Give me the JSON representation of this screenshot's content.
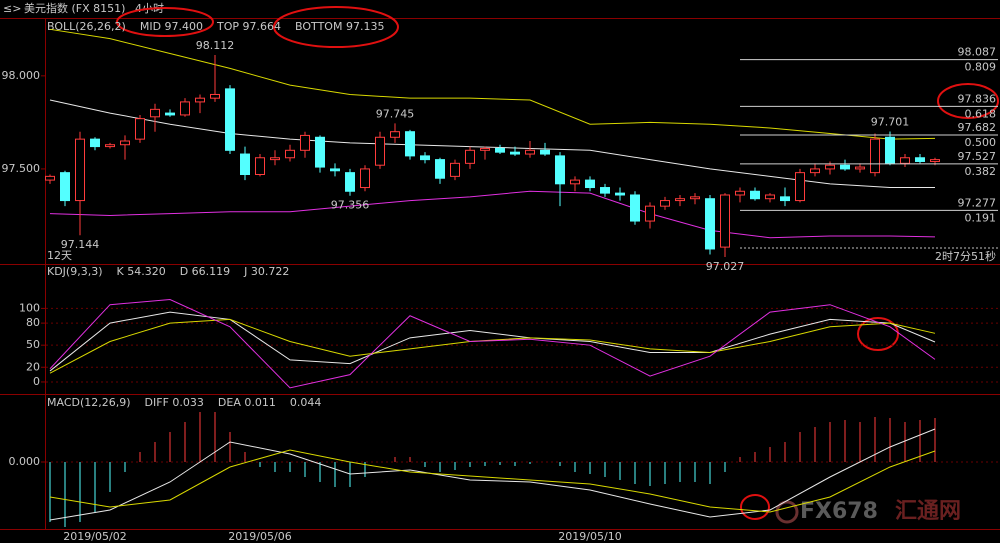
{
  "chart_data": [
    {
      "type": "candlestick",
      "title": "美元指数 (FX 8151)",
      "period": "4小时",
      "indicator": "BOLL(26,26,2)",
      "up_color": "#ff3c3c",
      "down_color": "#54ffff",
      "categories": [
        null,
        null,
        null,
        "2019/05/02",
        null,
        null,
        null,
        null,
        null,
        null,
        null,
        null,
        null,
        null,
        "2019/05/06",
        null,
        null,
        null,
        null,
        null,
        null,
        null,
        null,
        null,
        null,
        null,
        null,
        null,
        null,
        null,
        null,
        null,
        null,
        null,
        null,
        null,
        "2019/05/10",
        null,
        null,
        null,
        null,
        null,
        null,
        null,
        null,
        null,
        null,
        null,
        null,
        null,
        null,
        null,
        null,
        null,
        null,
        null,
        null,
        null,
        null,
        null
      ],
      "open": [
        97.44,
        97.48,
        97.33,
        97.66,
        97.62,
        97.63,
        97.66,
        97.78,
        97.8,
        97.79,
        97.86,
        97.88,
        97.93,
        97.58,
        97.47,
        97.55,
        97.56,
        97.6,
        97.67,
        97.5,
        97.48,
        97.4,
        97.52,
        97.67,
        97.7,
        97.57,
        97.55,
        97.46,
        97.53,
        97.6,
        97.61,
        97.59,
        97.58,
        97.6,
        97.57,
        97.42,
        97.44,
        97.4,
        97.37,
        97.36,
        97.22,
        97.3,
        97.33,
        97.34,
        97.34,
        97.08,
        97.36,
        97.38,
        97.34,
        97.35,
        97.33,
        97.48,
        97.5,
        97.52,
        97.5,
        97.48,
        97.67,
        97.53,
        97.56,
        97.54
      ],
      "high": [
        97.47,
        97.49,
        97.7,
        97.67,
        97.64,
        97.68,
        97.79,
        97.85,
        97.82,
        97.88,
        97.9,
        98.112,
        97.95,
        97.62,
        97.58,
        97.6,
        97.63,
        97.7,
        97.68,
        97.53,
        97.5,
        97.52,
        97.7,
        97.745,
        97.71,
        97.59,
        97.56,
        97.55,
        97.62,
        97.62,
        97.63,
        97.62,
        97.65,
        97.64,
        97.59,
        97.46,
        97.46,
        97.42,
        97.4,
        97.38,
        97.32,
        97.35,
        97.36,
        97.37,
        97.36,
        97.37,
        97.4,
        97.4,
        97.37,
        97.4,
        97.5,
        97.53,
        97.54,
        97.55,
        97.53,
        97.69,
        97.701,
        97.58,
        97.58,
        97.56
      ],
      "low": [
        97.42,
        97.3,
        97.144,
        97.6,
        97.61,
        97.55,
        97.64,
        97.7,
        97.78,
        97.78,
        97.8,
        97.86,
        97.58,
        97.44,
        97.46,
        97.52,
        97.54,
        97.56,
        97.48,
        97.46,
        97.356,
        97.38,
        97.5,
        97.64,
        97.55,
        97.53,
        97.42,
        97.44,
        97.5,
        97.55,
        97.58,
        97.57,
        97.56,
        97.57,
        97.3,
        97.38,
        97.38,
        97.35,
        97.33,
        97.2,
        97.18,
        97.28,
        97.3,
        97.31,
        97.04,
        97.027,
        97.32,
        97.33,
        97.32,
        97.3,
        97.32,
        97.46,
        97.47,
        97.49,
        97.48,
        97.46,
        97.52,
        97.51,
        97.53,
        97.52
      ],
      "close": [
        97.46,
        97.33,
        97.66,
        97.62,
        97.63,
        97.65,
        97.77,
        97.82,
        97.79,
        97.86,
        97.88,
        97.9,
        97.6,
        97.47,
        97.56,
        97.56,
        97.6,
        97.68,
        97.51,
        97.49,
        97.38,
        97.5,
        97.67,
        97.7,
        97.57,
        97.55,
        97.45,
        97.53,
        97.6,
        97.61,
        97.59,
        97.58,
        97.6,
        97.58,
        97.42,
        97.44,
        97.4,
        97.37,
        97.36,
        97.22,
        97.3,
        97.33,
        97.34,
        97.35,
        97.07,
        97.36,
        97.38,
        97.34,
        97.36,
        97.33,
        97.48,
        97.5,
        97.52,
        97.5,
        97.51,
        97.66,
        97.53,
        97.56,
        97.54,
        97.55
      ],
      "lines": {
        "x": [
          0,
          4,
          8,
          12,
          16,
          20,
          24,
          28,
          32,
          36,
          40,
          44,
          48,
          52,
          56,
          59
        ],
        "series": [
          {
            "label": "MID 97.400",
            "color": "#e8e8e8",
            "values": [
              97.87,
              97.8,
              97.74,
              97.69,
              97.66,
              97.64,
              97.63,
              97.62,
              97.61,
              97.6,
              97.55,
              97.5,
              97.46,
              97.42,
              97.4,
              97.4
            ]
          },
          {
            "label": "TOP 97.664",
            "color": "#d8d800",
            "values": [
              98.25,
              98.2,
              98.12,
              98.04,
              97.95,
              97.9,
              97.88,
              97.88,
              97.87,
              97.74,
              97.75,
              97.74,
              97.72,
              97.69,
              97.66,
              97.664
            ]
          },
          {
            "label": "BOTTOM 97.135",
            "color": "#e030e0",
            "values": [
              97.26,
              97.25,
              97.26,
              97.27,
              97.27,
              97.3,
              97.33,
              97.35,
              97.38,
              97.37,
              97.26,
              97.17,
              97.13,
              97.14,
              97.14,
              97.135
            ]
          }
        ]
      },
      "high_labels": [
        98.112,
        97.745,
        97.701
      ],
      "low_labels": [
        97.356,
        97.144,
        97.027
      ],
      "fib_levels": [
        {
          "price": 98.087,
          "ratio": 0.809
        },
        {
          "price": 97.836,
          "ratio": 0.618
        },
        {
          "price": 97.682,
          "ratio": {
            "value": 0.5,
            "label": "0.500"
          }
        },
        {
          "price": 97.527,
          "ratio": 0.382
        },
        {
          "price": 97.277,
          "ratio": 0.191
        }
      ],
      "range_label": "12天",
      "countdown": "2时7分51秒",
      "ylim": [
        97.0,
        98.3
      ],
      "yticks": [
        {
          "value": 97.5,
          "label": "97.500"
        },
        {
          "value": 98.0,
          "label": "98.000"
        }
      ]
    },
    {
      "type": "line",
      "indicator": "KDJ(9,3,3)",
      "x": [
        0,
        4,
        8,
        12,
        16,
        20,
        24,
        28,
        32,
        36,
        40,
        44,
        48,
        52,
        56,
        59
      ],
      "series": [
        {
          "label": "K 54.320",
          "color": "#e8e8e8",
          "values": [
            15,
            80,
            95,
            85,
            30,
            25,
            60,
            70,
            60,
            55,
            40,
            40,
            65,
            85,
            80,
            54.32
          ]
        },
        {
          "label": "D 66.119",
          "color": "#d8d800",
          "values": [
            12,
            55,
            80,
            85,
            55,
            35,
            45,
            55,
            60,
            57,
            45,
            40,
            55,
            75,
            80,
            66.119
          ]
        },
        {
          "label": "J 30.722",
          "color": "#e030e0",
          "values": [
            18,
            105,
            112,
            75,
            -8,
            10,
            90,
            55,
            58,
            50,
            8,
            35,
            95,
            105,
            75,
            30.722
          ]
        }
      ],
      "ylim": [
        -15,
        125
      ],
      "yticks": [
        0,
        20,
        50,
        80,
        100
      ],
      "grid": true
    },
    {
      "type": "macd",
      "indicator": "MACD(12,26,9)",
      "x": [
        0,
        4,
        8,
        12,
        16,
        20,
        24,
        28,
        32,
        36,
        40,
        44,
        48,
        52,
        56,
        59
      ],
      "series": [
        {
          "label": "DIFF 0.033",
          "color": "#e8e8e8",
          "values": [
            -0.058,
            -0.048,
            -0.02,
            0.02,
            0.008,
            -0.012,
            -0.008,
            -0.018,
            -0.02,
            -0.028,
            -0.042,
            -0.055,
            -0.048,
            -0.015,
            0.015,
            0.033
          ]
        },
        {
          "label": "DEA 0.011",
          "color": "#d8d800",
          "values": [
            -0.035,
            -0.045,
            -0.038,
            -0.005,
            0.012,
            0.0,
            -0.01,
            -0.014,
            -0.018,
            -0.022,
            -0.032,
            -0.045,
            -0.05,
            -0.035,
            -0.005,
            0.011
          ]
        }
      ],
      "histogram": [
        -0.06,
        -0.065,
        -0.06,
        -0.05,
        -0.03,
        -0.01,
        0.01,
        0.02,
        0.03,
        0.04,
        0.05,
        0.05,
        0.03,
        0.01,
        -0.005,
        -0.01,
        -0.01,
        -0.015,
        -0.02,
        -0.025,
        -0.025,
        -0.015,
        0.0,
        0.005,
        0.005,
        -0.005,
        -0.01,
        -0.008,
        -0.005,
        -0.004,
        -0.003,
        -0.004,
        -0.002,
        0.0,
        -0.004,
        -0.01,
        -0.012,
        -0.015,
        -0.018,
        -0.022,
        -0.024,
        -0.022,
        -0.02,
        -0.02,
        -0.022,
        -0.01,
        0.005,
        0.01,
        0.015,
        0.02,
        0.03,
        0.035,
        0.04,
        0.042,
        0.04,
        0.045,
        0.044,
        0.04,
        0.042,
        0.044
      ],
      "histogram_label": "0.044",
      "up_color": "#ff3c3c",
      "down_color": "#54ffff",
      "ylim": [
        -0.068,
        0.062
      ],
      "yticks": [
        {
          "value": 0,
          "label": "0.000"
        }
      ],
      "grid": true
    }
  ],
  "watermark": [
    "FX678",
    "汇通网"
  ]
}
